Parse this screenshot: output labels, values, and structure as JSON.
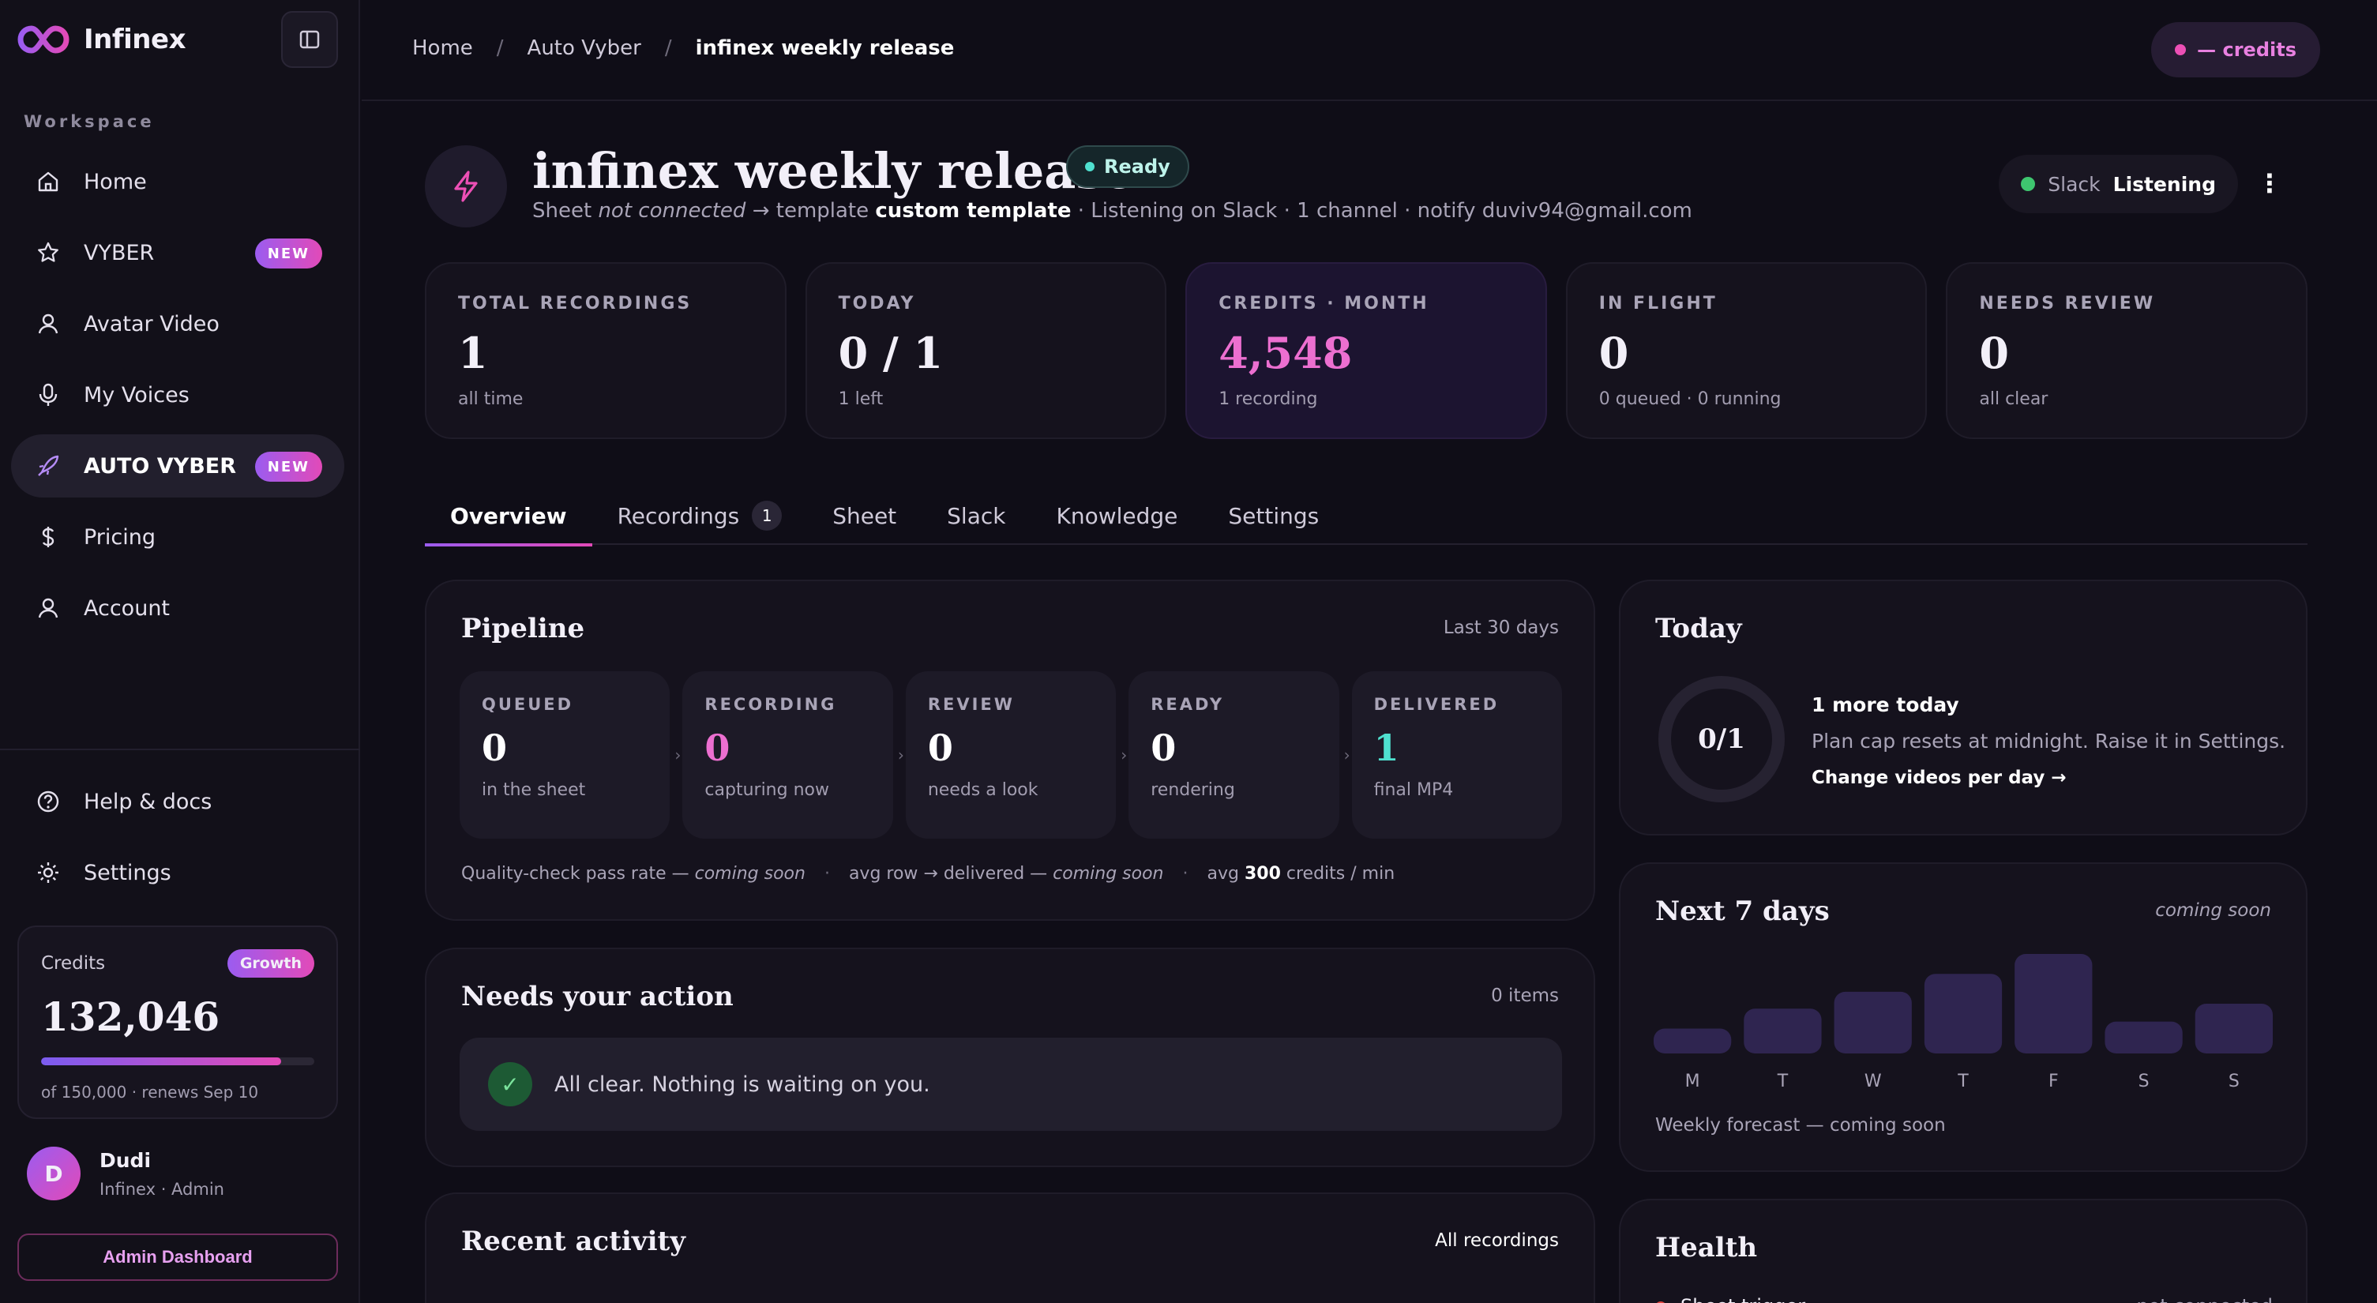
{
  "brand": {
    "name": "Infinex"
  },
  "sidebar": {
    "section_label": "Workspace",
    "items": [
      {
        "label": "Home",
        "icon": "home-icon"
      },
      {
        "label": "VYBER",
        "icon": "star-icon",
        "badge": "NEW"
      },
      {
        "label": "Avatar Video",
        "icon": "user-icon"
      },
      {
        "label": "My Voices",
        "icon": "microphone-icon"
      },
      {
        "label": "AUTO VYBER",
        "icon": "rocket-icon",
        "badge": "NEW",
        "active": true
      },
      {
        "label": "Pricing",
        "icon": "dollar-icon"
      },
      {
        "label": "Account",
        "icon": "user-icon"
      }
    ],
    "bottom_items": [
      {
        "label": "Help & docs",
        "icon": "help-icon"
      },
      {
        "label": "Settings",
        "icon": "gear-icon"
      }
    ],
    "credits": {
      "label": "Credits",
      "plan": "Growth",
      "value": "132,046",
      "used_fraction": 0.88,
      "note": "of 150,000 · renews Sep 10"
    },
    "user": {
      "initial": "D",
      "name": "Dudi",
      "role": "Infinex · Admin"
    },
    "admin_button": "Admin Dashboard"
  },
  "topbar": {
    "breadcrumbs": [
      "Home",
      "Auto Vyber",
      "infinex weekly release"
    ],
    "breadcrumb_sep": "/",
    "credits_pill": "— credits"
  },
  "project": {
    "title": "infinex weekly release",
    "status": "Ready",
    "sub": {
      "sheet_prefix": "Sheet ",
      "sheet_state": "not connected",
      "template_prefix": " → template ",
      "template": "custom template",
      "rest": " · Listening on Slack · 1 channel · notify duviv94@gmail.com"
    },
    "slack": {
      "label": "Slack",
      "state": "Listening"
    },
    "menu_glyph": "⋮"
  },
  "stats": [
    {
      "label": "TOTAL RECORDINGS",
      "value": "1",
      "note": "all time"
    },
    {
      "label": "TODAY",
      "value": "0 / 1",
      "note": "1 left"
    },
    {
      "label": "CREDITS · MONTH",
      "value": "4,548",
      "note": "1 recording",
      "highlight": true
    },
    {
      "label": "IN FLIGHT",
      "value": "0",
      "note": "0 queued · 0 running"
    },
    {
      "label": "NEEDS REVIEW",
      "value": "0",
      "note": "all clear"
    }
  ],
  "tabs": [
    {
      "label": "Overview",
      "active": true
    },
    {
      "label": "Recordings",
      "count": "1"
    },
    {
      "label": "Sheet"
    },
    {
      "label": "Slack"
    },
    {
      "label": "Knowledge"
    },
    {
      "label": "Settings"
    }
  ],
  "pipeline": {
    "title": "Pipeline",
    "range": "Last 30 days",
    "stages": [
      {
        "label": "QUEUED",
        "value": "0",
        "note": "in the sheet",
        "color": "#ffffff"
      },
      {
        "label": "RECORDING",
        "value": "0",
        "note": "capturing now",
        "color": "#ec6fd0"
      },
      {
        "label": "REVIEW",
        "value": "0",
        "note": "needs a look",
        "color": "#ffffff"
      },
      {
        "label": "READY",
        "value": "0",
        "note": "rendering",
        "color": "#ffffff"
      },
      {
        "label": "DELIVERED",
        "value": "1",
        "note": "final MP4",
        "color": "#4fe0cf"
      }
    ],
    "arrow": "›",
    "footer": {
      "qc_label": "Quality-check pass rate — ",
      "qc_value": "coming soon",
      "avg_label": "avg row → delivered — ",
      "avg_value": "coming soon",
      "rate_prefix": "avg ",
      "rate_value": "300",
      "rate_suffix": " credits / min",
      "dot": "·"
    }
  },
  "needs_action": {
    "title": "Needs your action",
    "count": "0 items",
    "message": "All clear. Nothing is waiting on you.",
    "check": "✓"
  },
  "recent_activity": {
    "title": "Recent activity",
    "link": "All recordings"
  },
  "today": {
    "title": "Today",
    "ring_label": "0/1",
    "ring_fraction": 0,
    "headline": "1 more today",
    "line": "Plan cap resets at midnight. Raise it in Settings.",
    "link": "Change videos per day →"
  },
  "next7": {
    "title": "Next 7 days",
    "meta": "coming soon",
    "days": [
      "M",
      "T",
      "W",
      "T",
      "F",
      "S",
      "S"
    ],
    "levels": [
      0.25,
      0.45,
      0.62,
      0.8,
      1.0,
      0.32,
      0.5
    ],
    "forecast": "Weekly forecast — coming soon"
  },
  "health": {
    "title": "Health",
    "row_label": "Sheet trigger",
    "row_state": "not connected"
  },
  "colors": {
    "accent": "#9b5cf0",
    "accent2": "#e24ab8",
    "ready": "#4fe0cf",
    "ok": "#3ec66f"
  }
}
